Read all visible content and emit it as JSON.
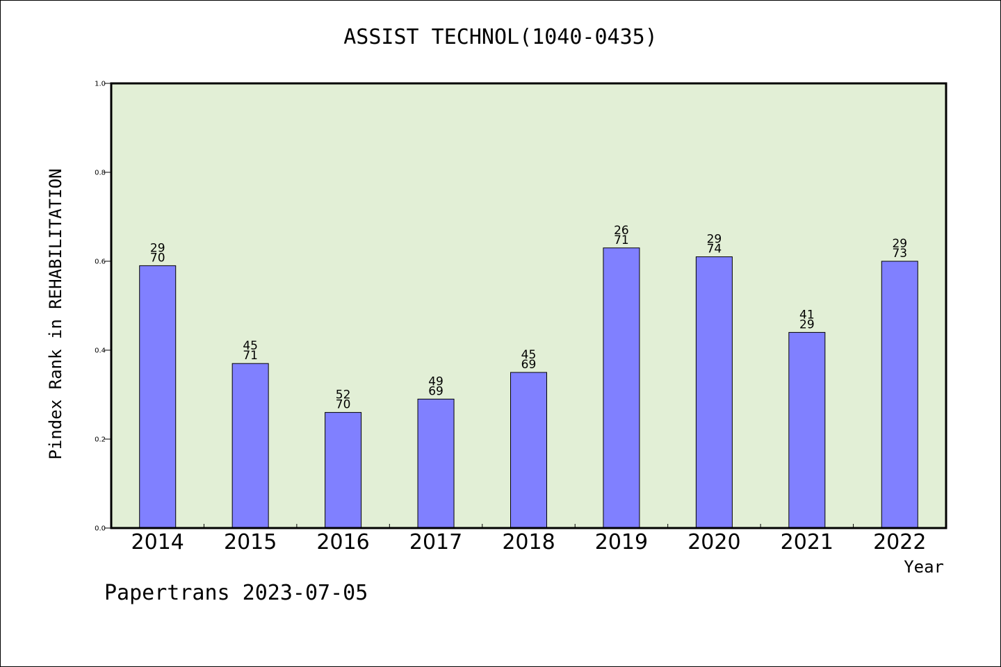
{
  "chart_data": {
    "type": "bar",
    "title": "ASSIST TECHNOL(1040-0435)",
    "xlabel": "Year",
    "ylabel": "Pindex Rank in REHABILITATION",
    "categories": [
      "2014",
      "2015",
      "2016",
      "2017",
      "2018",
      "2019",
      "2020",
      "2021",
      "2022"
    ],
    "values": [
      0.59,
      0.37,
      0.26,
      0.29,
      0.35,
      0.63,
      0.61,
      0.44,
      0.6
    ],
    "labels_top": [
      "29",
      "45",
      "52",
      "49",
      "45",
      "26",
      "29",
      "41",
      "29"
    ],
    "labels_bottom": [
      "70",
      "71",
      "70",
      "69",
      "69",
      "71",
      "74",
      "29",
      "73"
    ],
    "ylim": [
      0,
      1.0
    ],
    "yticks": [
      "0.0",
      "0.2",
      "0.4",
      "0.6",
      "0.8",
      "1.0"
    ],
    "grid": false,
    "colors": {
      "bar": "#8080ff",
      "plot_background": "#e2efd6"
    }
  },
  "footer": "Papertrans 2023-07-05"
}
